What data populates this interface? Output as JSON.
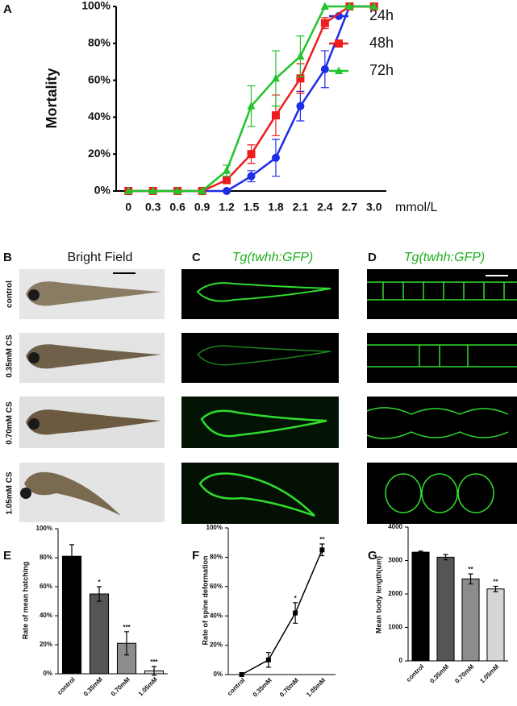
{
  "chart_data": [
    {
      "type": "line",
      "panel": "A",
      "ylabel": "Mortality",
      "xlabel": "mmol/L",
      "categories": [
        "0",
        "0.3",
        "0.6",
        "0.9",
        "1.2",
        "1.5",
        "1.8",
        "2.1",
        "2.4",
        "2.7",
        "3.0"
      ],
      "series": [
        {
          "name": "24h",
          "color": "#1d2ee6",
          "marker": "circle",
          "values": [
            0,
            0,
            0,
            0,
            0,
            8,
            18,
            46,
            66,
            100,
            100
          ],
          "errors": [
            0,
            0,
            0,
            0,
            0,
            3,
            10,
            8,
            10,
            0,
            0
          ]
        },
        {
          "name": "48h",
          "color": "#ee1c1c",
          "marker": "square",
          "values": [
            0,
            0,
            0,
            0,
            6,
            20,
            41,
            61,
            91,
            100,
            100
          ],
          "errors": [
            0,
            0,
            0,
            0,
            2,
            5,
            11,
            8,
            3,
            0,
            0
          ]
        },
        {
          "name": "72h",
          "color": "#21c42a",
          "marker": "triangle",
          "values": [
            0,
            0,
            0,
            0,
            11,
            46,
            61,
            73,
            100,
            100,
            100
          ],
          "errors": [
            0,
            0,
            0,
            0,
            3,
            11,
            15,
            11,
            0,
            0,
            0
          ]
        }
      ],
      "ylim": [
        0,
        100
      ],
      "yticks": [
        {
          "value": 0,
          "label": "0%"
        },
        {
          "value": 20,
          "label": "20%"
        },
        {
          "value": 40,
          "label": "40%"
        },
        {
          "value": 60,
          "label": "60%"
        },
        {
          "value": 80,
          "label": "80%"
        },
        {
          "value": 100,
          "label": "100%"
        }
      ],
      "legend": "upper right"
    },
    {
      "type": "bar",
      "panel": "E",
      "ylabel": "Rate of mean hatching",
      "categories": [
        "control",
        "0.35mM",
        "0.70mM",
        "1.05mM"
      ],
      "values": [
        81,
        55,
        21,
        2
      ],
      "errors": [
        8,
        5,
        8,
        3
      ],
      "colors": [
        "#000000",
        "#555555",
        "#8c8c8c",
        "#d6d6d6"
      ],
      "annotations": [
        null,
        "*",
        "***",
        "***"
      ],
      "ylim": [
        0,
        100
      ],
      "yticks": [
        {
          "value": 0,
          "label": "0%"
        },
        {
          "value": 20,
          "label": "20%"
        },
        {
          "value": 40,
          "label": "40%"
        },
        {
          "value": 60,
          "label": "60%"
        },
        {
          "value": 80,
          "label": "80%"
        },
        {
          "value": 100,
          "label": "100%"
        }
      ]
    },
    {
      "type": "line",
      "panel": "F",
      "ylabel": "Rate of spine deformation",
      "categories": [
        "control",
        "0.35mM",
        "0.70mM",
        "1.05mM"
      ],
      "series": [
        {
          "color": "#000000",
          "marker": "square",
          "values": [
            0,
            10,
            42,
            85
          ],
          "errors": [
            0,
            5,
            7,
            4
          ]
        }
      ],
      "annotations": [
        null,
        null,
        "*",
        "**"
      ],
      "ylim": [
        0,
        100
      ],
      "yticks": [
        {
          "value": 0,
          "label": "0%"
        },
        {
          "value": 20,
          "label": "20%"
        },
        {
          "value": 40,
          "label": "40%"
        },
        {
          "value": 60,
          "label": "60%"
        },
        {
          "value": 80,
          "label": "80%"
        },
        {
          "value": 100,
          "label": "100%"
        }
      ]
    },
    {
      "type": "bar",
      "panel": "G",
      "ylabel": "Mean body length(um)",
      "categories": [
        "control",
        "0.35mM",
        "0.70mM",
        "1.05mM"
      ],
      "values": [
        3250,
        3100,
        2450,
        2150
      ],
      "errors": [
        30,
        80,
        150,
        80
      ],
      "colors": [
        "#000000",
        "#555555",
        "#8c8c8c",
        "#d6d6d6"
      ],
      "annotations": [
        null,
        null,
        "**",
        "**"
      ],
      "ylim": [
        0,
        4000
      ],
      "yticks": [
        0,
        1000,
        2000,
        3000,
        4000
      ]
    }
  ],
  "images": {
    "panels": [
      {
        "letter": "B",
        "title": "Bright Field"
      },
      {
        "letter": "C",
        "title": "Tg(twhh:GFP)"
      },
      {
        "letter": "D",
        "title": "Tg(twhh:GFP)"
      }
    ],
    "rows": [
      "control",
      "0.35mM CS",
      "0.70mM CS",
      "1.05mM CS"
    ]
  }
}
